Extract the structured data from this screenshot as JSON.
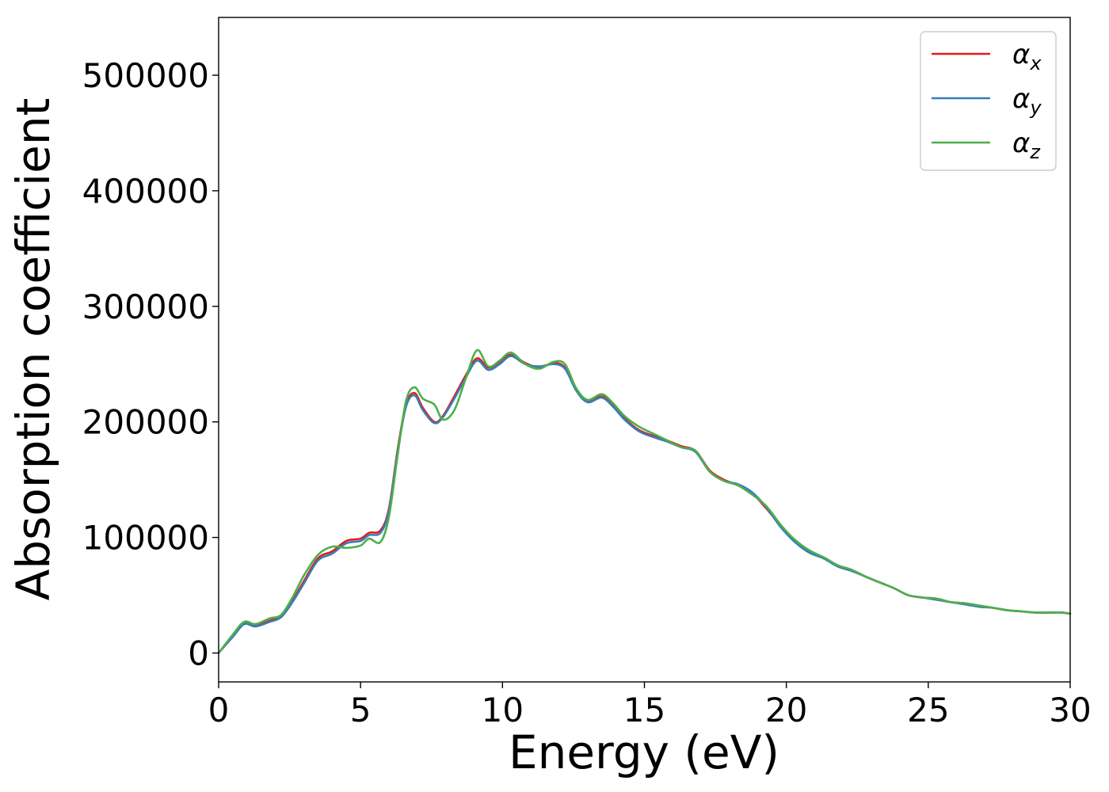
{
  "chart_data": {
    "type": "line",
    "title": "",
    "xlabel": "Energy (eV)",
    "ylabel": "Absorption coefficient",
    "xlim": [
      0,
      30
    ],
    "ylim": [
      -25000,
      550000
    ],
    "xticks": [
      0,
      5,
      10,
      15,
      20,
      25,
      30
    ],
    "yticks": [
      0,
      100000,
      200000,
      300000,
      400000,
      500000
    ],
    "grid": false,
    "legend_position": "top-right",
    "series": [
      {
        "name": "αx",
        "legend_base": "α",
        "legend_sub": "x",
        "color": "#e41a1c",
        "x": [
          0,
          0.5,
          0.9,
          1.3,
          1.8,
          2.2,
          2.6,
          3.0,
          3.5,
          4.0,
          4.5,
          5.0,
          5.3,
          5.7,
          6.0,
          6.3,
          6.6,
          6.9,
          7.2,
          7.6,
          7.9,
          8.3,
          8.7,
          9.1,
          9.5,
          9.9,
          10.3,
          10.8,
          11.3,
          11.8,
          12.2,
          12.6,
          13.0,
          13.5,
          13.9,
          14.3,
          14.8,
          15.3,
          15.8,
          16.3,
          16.8,
          17.3,
          17.8,
          18.3,
          18.8,
          19.3,
          19.8,
          20.3,
          20.8,
          21.3,
          21.8,
          22.3,
          22.8,
          23.3,
          23.8,
          24.3,
          24.8,
          25.3,
          25.8,
          26.3,
          26.8,
          27.3,
          27.8,
          28.3,
          28.8,
          29.3,
          29.7,
          30
        ],
        "values": [
          0,
          15000,
          26000,
          24000,
          28000,
          32000,
          45000,
          62000,
          82000,
          88000,
          97000,
          99000,
          104000,
          106000,
          125000,
          175000,
          215000,
          225000,
          212000,
          200000,
          205000,
          222000,
          240000,
          255000,
          247000,
          252000,
          258000,
          251000,
          247000,
          251000,
          247000,
          228000,
          218000,
          222000,
          214000,
          203000,
          193000,
          188000,
          184000,
          179000,
          175000,
          158000,
          150000,
          145000,
          138000,
          125000,
          110000,
          97000,
          88000,
          83000,
          76000,
          72000,
          66000,
          61000,
          56000,
          50000,
          48000,
          47000,
          44000,
          43000,
          41000,
          39000,
          37000,
          36000,
          35000,
          35000,
          35000,
          34000
        ]
      },
      {
        "name": "αy",
        "legend_base": "α",
        "legend_sub": "y",
        "color": "#377eb8",
        "x": [
          0,
          0.5,
          0.9,
          1.3,
          1.8,
          2.2,
          2.6,
          3.0,
          3.5,
          4.0,
          4.5,
          5.0,
          5.3,
          5.7,
          6.0,
          6.3,
          6.6,
          6.9,
          7.2,
          7.6,
          7.9,
          8.3,
          8.7,
          9.1,
          9.5,
          9.9,
          10.3,
          10.8,
          11.3,
          11.8,
          12.2,
          12.6,
          13.0,
          13.5,
          13.9,
          14.3,
          14.8,
          15.3,
          15.8,
          16.3,
          16.8,
          17.3,
          17.8,
          18.3,
          18.8,
          19.3,
          19.8,
          20.3,
          20.8,
          21.3,
          21.8,
          22.3,
          22.8,
          23.3,
          23.8,
          24.3,
          24.8,
          25.3,
          25.8,
          26.3,
          26.8,
          27.3,
          27.8,
          28.3,
          28.8,
          29.3,
          29.7,
          30
        ],
        "values": [
          0,
          14000,
          25000,
          23000,
          27000,
          31000,
          44000,
          60000,
          80000,
          86000,
          95000,
          97000,
          102000,
          104000,
          123000,
          173000,
          213000,
          223000,
          210000,
          199000,
          204000,
          220000,
          238000,
          253000,
          245000,
          250000,
          257000,
          250000,
          248000,
          250000,
          246000,
          227000,
          217000,
          221000,
          213000,
          202000,
          192000,
          187000,
          183000,
          178000,
          174000,
          157000,
          149000,
          146000,
          139000,
          126000,
          109000,
          96000,
          87000,
          82000,
          75000,
          71000,
          66000,
          61000,
          56000,
          50000,
          48000,
          46000,
          44000,
          42000,
          40000,
          39000,
          37000,
          36000,
          35000,
          35000,
          35000,
          34000
        ]
      },
      {
        "name": "αz",
        "legend_base": "α",
        "legend_sub": "z",
        "color": "#4daf4a",
        "x": [
          0,
          0.5,
          0.9,
          1.3,
          1.8,
          2.2,
          2.6,
          3.0,
          3.5,
          4.0,
          4.5,
          5.0,
          5.3,
          5.7,
          6.0,
          6.3,
          6.6,
          6.9,
          7.2,
          7.6,
          7.9,
          8.3,
          8.7,
          9.1,
          9.5,
          9.9,
          10.3,
          10.8,
          11.3,
          11.8,
          12.2,
          12.6,
          13.0,
          13.5,
          13.9,
          14.3,
          14.8,
          15.3,
          15.8,
          16.3,
          16.8,
          17.3,
          17.8,
          18.3,
          18.8,
          19.3,
          19.8,
          20.3,
          20.8,
          21.3,
          21.8,
          22.3,
          22.8,
          23.3,
          23.8,
          24.3,
          24.8,
          25.3,
          25.8,
          26.3,
          26.8,
          27.3,
          27.8,
          28.3,
          28.8,
          29.3,
          29.7,
          30
        ],
        "values": [
          0,
          16000,
          27000,
          25000,
          30000,
          33000,
          48000,
          67000,
          85000,
          92000,
          91000,
          93000,
          99000,
          96000,
          118000,
          170000,
          218000,
          230000,
          220000,
          215000,
          202000,
          210000,
          237000,
          262000,
          248000,
          253000,
          260000,
          250000,
          246000,
          252000,
          250000,
          229000,
          219000,
          224000,
          216000,
          205000,
          196000,
          190000,
          184000,
          178000,
          175000,
          157000,
          149000,
          145000,
          137000,
          127000,
          111000,
          98000,
          89000,
          83000,
          76000,
          72000,
          66000,
          61000,
          56000,
          50000,
          48000,
          47000,
          44000,
          43000,
          41000,
          39000,
          37000,
          36000,
          35000,
          35000,
          35000,
          34000
        ]
      }
    ]
  }
}
